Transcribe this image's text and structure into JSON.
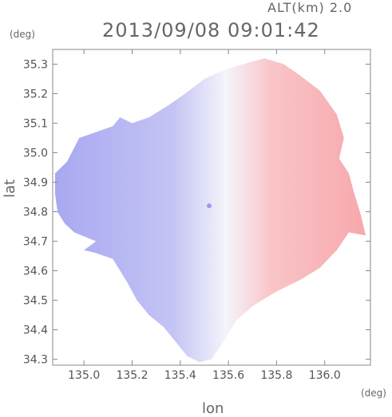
{
  "header": {
    "altitude": "ALT(km)  2.0",
    "datetime": "2013/09/08 09:01:42"
  },
  "chart_data": {
    "type": "heatmap",
    "title": "2013/09/08 09:01:42",
    "subtitle": "ALT(km)  2.0",
    "xlabel": "lon",
    "ylabel": "lat",
    "x_unit": "(deg)",
    "y_unit": "(deg)",
    "xlim": [
      134.87,
      136.19
    ],
    "ylim": [
      34.28,
      35.35
    ],
    "x_ticks": [
      "135.0",
      "135.2",
      "135.4",
      "135.6",
      "135.8",
      "136.0"
    ],
    "x_tick_values": [
      135.0,
      135.2,
      135.4,
      135.6,
      135.8,
      136.0
    ],
    "y_ticks": [
      "34.3",
      "34.4",
      "34.5",
      "34.6",
      "34.7",
      "34.8",
      "34.9",
      "35.0",
      "35.1",
      "35.2",
      "35.3"
    ],
    "y_tick_values": [
      34.3,
      34.4,
      34.5,
      34.6,
      34.7,
      34.8,
      34.9,
      35.0,
      35.1,
      35.2,
      35.3
    ],
    "radar_center": {
      "lon": 135.52,
      "lat": 34.82
    },
    "colors": {
      "negative": "#a8a8f2",
      "neutral": "#f4f4fb",
      "positive": "#f7a8ac",
      "axis": "#888888"
    }
  }
}
